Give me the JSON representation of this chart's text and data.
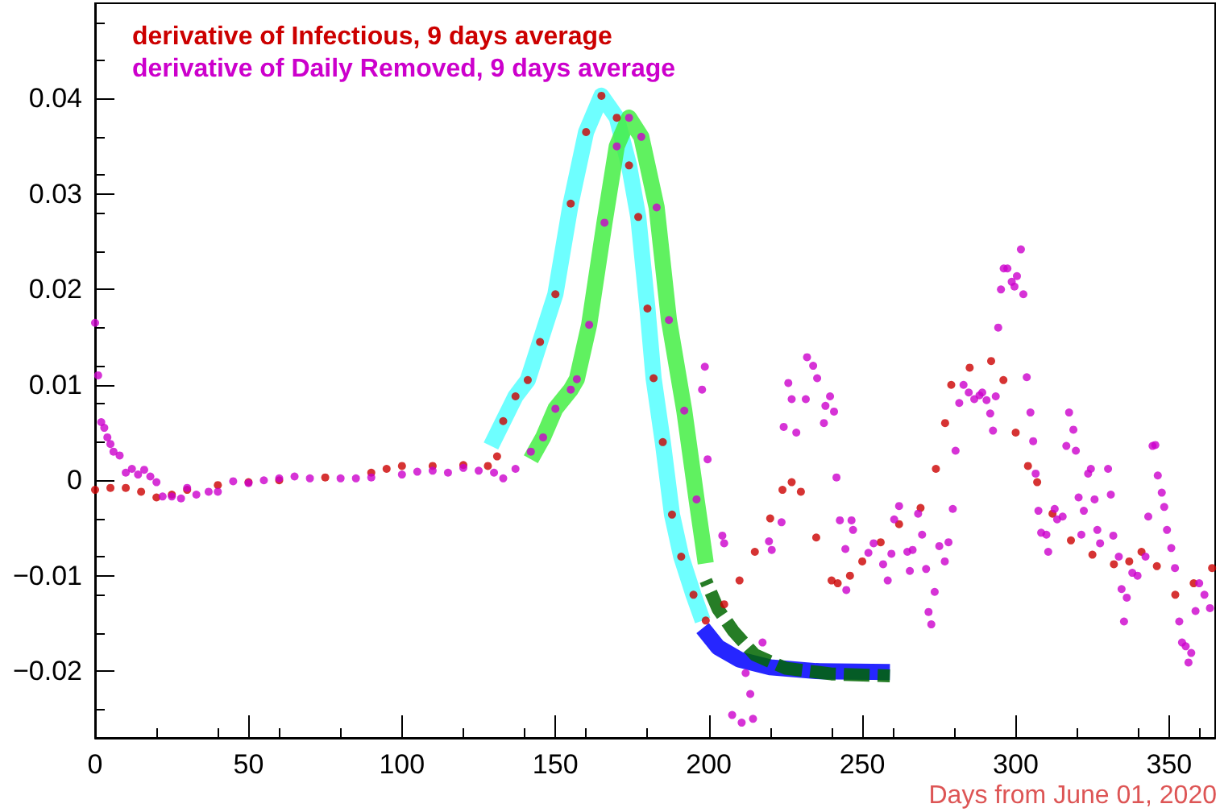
{
  "chart_data": {
    "type": "scatter",
    "xlabel": "Days from June 01, 2020",
    "xlim": [
      0,
      365
    ],
    "xticks": [
      0,
      50,
      100,
      150,
      200,
      250,
      300,
      350
    ],
    "ylim": [
      -0.027,
      0.05
    ],
    "yticks": [
      -0.02,
      -0.01,
      0,
      0.01,
      0.02,
      0.03,
      0.04
    ],
    "grid": false,
    "legend": "top left",
    "series": [
      {
        "type": "line",
        "marker": "none",
        "color": "#55ffff",
        "x": [
          129,
          133,
          137,
          141,
          145,
          150,
          155,
          160,
          165,
          170,
          174,
          177,
          180,
          182,
          185,
          188,
          191,
          195,
          198
        ],
        "values": [
          0.0036,
          0.0062,
          0.0088,
          0.0105,
          0.0145,
          0.0195,
          0.029,
          0.0365,
          0.0403,
          0.038,
          0.033,
          0.0276,
          0.018,
          0.0107,
          0.004,
          -0.0036,
          -0.008,
          -0.012,
          -0.0147
        ]
      },
      {
        "type": "line",
        "marker": "none",
        "color": "#44ee44",
        "x": [
          142,
          146,
          150,
          155,
          157,
          161,
          166,
          170,
          174,
          178,
          183,
          187,
          192,
          196,
          199
        ],
        "values": [
          0.0022,
          0.0045,
          0.0075,
          0.0095,
          0.0106,
          0.0163,
          0.027,
          0.035,
          0.038,
          0.036,
          0.0286,
          0.0168,
          0.0073,
          -0.002,
          -0.0087
        ]
      },
      {
        "type": "line",
        "marker": "none",
        "color": "#0000ff",
        "x": [
          198,
          203,
          210,
          220,
          235,
          259
        ],
        "values": [
          -0.0155,
          -0.0175,
          -0.0188,
          -0.0196,
          -0.02,
          -0.0201
        ]
      },
      {
        "type": "line",
        "marker": "none",
        "color": "#006600",
        "line_style": "dashed",
        "x": [
          199,
          203,
          208,
          215,
          225,
          240,
          259
        ],
        "values": [
          -0.0105,
          -0.0135,
          -0.0158,
          -0.0183,
          -0.0197,
          -0.0203,
          -0.0205
        ]
      },
      {
        "name": "derivative of Infectious, 9 days average",
        "marker": "circle",
        "color": "#cc0000",
        "x": [
          0,
          5,
          10,
          15,
          20,
          25,
          30,
          40,
          50,
          60,
          75,
          90,
          95,
          100,
          110,
          120,
          128,
          131,
          133,
          137,
          141,
          145,
          150,
          155,
          160,
          165,
          170,
          174,
          177,
          180,
          182,
          185,
          188,
          191,
          195,
          199,
          205,
          210,
          215,
          220,
          224,
          227,
          230,
          235,
          240,
          242,
          246,
          250,
          256,
          262,
          269,
          274,
          277,
          279,
          285,
          292,
          296,
          300,
          304,
          307,
          312,
          318,
          325,
          332,
          337,
          341,
          346,
          352,
          358,
          364
        ],
        "values": [
          -0.001,
          -0.0008,
          -0.0008,
          -0.0012,
          -0.0018,
          -0.0015,
          -0.001,
          -0.0005,
          -0.0002,
          0.0,
          0.0003,
          0.0008,
          0.0012,
          0.0015,
          0.0015,
          0.0016,
          0.0015,
          0.0025,
          0.0062,
          0.0088,
          0.0105,
          0.0145,
          0.0195,
          0.029,
          0.0365,
          0.0403,
          0.038,
          0.033,
          0.0276,
          0.018,
          0.0107,
          0.004,
          -0.0036,
          -0.008,
          -0.012,
          -0.0147,
          -0.013,
          -0.0105,
          -0.0075,
          -0.004,
          -0.001,
          -0.0002,
          -0.0012,
          -0.006,
          -0.0105,
          -0.0108,
          -0.01,
          -0.0085,
          -0.0065,
          -0.0046,
          -0.0029,
          0.0012,
          0.006,
          0.01,
          0.0118,
          0.0125,
          0.0105,
          0.005,
          0.0015,
          -0.0002,
          -0.0035,
          -0.0063,
          -0.0078,
          -0.0088,
          -0.0085,
          -0.0075,
          -0.009,
          -0.012,
          -0.0108,
          -0.0092
        ]
      },
      {
        "name": "derivative of Daily Removed, 9 days average",
        "marker": "circle",
        "color": "#cc00cc",
        "x": [
          0,
          1,
          2,
          3,
          4,
          5,
          6,
          8,
          10,
          12,
          14,
          16,
          18,
          20,
          22,
          25,
          28,
          30,
          33,
          37,
          40,
          45,
          50,
          55,
          60,
          65,
          70,
          80,
          85,
          90,
          100,
          105,
          110,
          115,
          120,
          125,
          130,
          133,
          137,
          142,
          146,
          150,
          155,
          157,
          161,
          166,
          170,
          174,
          178,
          183,
          187,
          192,
          196,
          197.8,
          198.7,
          199.6,
          204.4,
          205,
          207.6,
          210.7,
          212,
          213.5,
          214.4,
          217.5,
          219.6,
          220.5,
          223.7,
          224.4,
          225.9,
          227,
          228.5,
          231.6,
          232,
          234,
          235.3,
          237.5,
          238,
          239.5,
          240.8,
          241.6,
          242.7,
          244.5,
          244.8,
          246.5,
          247,
          252,
          253.7,
          256.8,
          258.3,
          259.5,
          260.4,
          262,
          264.7,
          265.5,
          266.4,
          268.2,
          269.5,
          270.8,
          271.6,
          272.5,
          273.6,
          275.1,
          276.9,
          278.1,
          279.5,
          280.4,
          281.6,
          283,
          284.7,
          286.5,
          288.2,
          289.1,
          290.5,
          291.7,
          292.6,
          293.5,
          294.3,
          295.2,
          296.1,
          297.3,
          298.7,
          299.6,
          300.4,
          301.7,
          302.5,
          303.6,
          304.8,
          305.7,
          306.5,
          307.4,
          308.3,
          310,
          310.6,
          312.7,
          313.5,
          315.3,
          316.5,
          317.4,
          318.8,
          319.6,
          320.5,
          321.4,
          322.2,
          323.6,
          324.5,
          325.7,
          326.6,
          327.5,
          330.1,
          331,
          331.8,
          333.6,
          334.5,
          335.3,
          336.2,
          338,
          339.7,
          342.3,
          343.2,
          344.6,
          345.5,
          346.3,
          347.6,
          348.4,
          349.3,
          350.7,
          351.9,
          353.3,
          354.2,
          355.4,
          356.3,
          357.2,
          358.6,
          359.8,
          361.5,
          363.3
        ],
        "values": [
          0.0165,
          0.011,
          0.0061,
          0.0055,
          0.0045,
          0.0038,
          0.003,
          0.0026,
          0.0008,
          0.0012,
          0.0006,
          0.0011,
          0.0004,
          -0.0002,
          -0.0017,
          -0.0017,
          -0.0019,
          -0.0008,
          -0.0015,
          -0.0012,
          -0.0012,
          -0.0001,
          -0.0003,
          0.0,
          0.0002,
          0.0004,
          0.0002,
          0.0002,
          0.0002,
          0.0003,
          0.0006,
          0.0009,
          0.001,
          0.0008,
          0.0013,
          0.001,
          0.0008,
          0.0002,
          0.0012,
          0.003,
          0.0045,
          0.0075,
          0.0095,
          0.0106,
          0.0163,
          0.027,
          0.035,
          0.038,
          0.036,
          0.0286,
          0.0168,
          0.0073,
          -0.002,
          0.0095,
          0.0119,
          0.0022,
          -0.0058,
          -0.0066,
          -0.0246,
          -0.0254,
          -0.0202,
          -0.0224,
          -0.025,
          -0.017,
          -0.0064,
          -0.0073,
          -0.0044,
          0.0056,
          0.0102,
          0.0085,
          0.005,
          0.0085,
          0.0129,
          0.012,
          0.0107,
          0.006,
          0.0078,
          0.0088,
          0.0072,
          0.0003,
          -0.0042,
          -0.0072,
          -0.0115,
          -0.0042,
          -0.0052,
          -0.0076,
          -0.0066,
          -0.0088,
          -0.0105,
          -0.0077,
          -0.0041,
          -0.0027,
          -0.0075,
          -0.0095,
          -0.0073,
          -0.0035,
          -0.0057,
          -0.0093,
          -0.0138,
          -0.0151,
          -0.0117,
          -0.0069,
          -0.0085,
          -0.0065,
          -0.003,
          0.0031,
          0.0081,
          0.01,
          0.0092,
          0.0085,
          0.0089,
          0.0092,
          0.0084,
          0.007,
          0.0052,
          0.0088,
          0.016,
          0.02,
          0.0222,
          0.0222,
          0.0208,
          0.0203,
          0.0214,
          0.0242,
          0.0195,
          0.0108,
          0.0071,
          0.0041,
          0.0007,
          -0.0032,
          -0.0055,
          -0.0057,
          -0.0075,
          -0.003,
          -0.0041,
          -0.0038,
          0.0036,
          0.0071,
          0.0053,
          0.0031,
          -0.0018,
          -0.0057,
          -0.0032,
          0.0007,
          0.0012,
          -0.002,
          -0.0052,
          -0.0066,
          0.0012,
          -0.0015,
          -0.0058,
          -0.008,
          -0.0114,
          -0.0148,
          -0.0123,
          -0.0097,
          -0.01,
          -0.008,
          -0.0038,
          0.0036,
          0.0037,
          0.0005,
          -0.0013,
          -0.0028,
          -0.0052,
          -0.0071,
          -0.0092,
          -0.0148,
          -0.017,
          -0.0174,
          -0.0191,
          -0.0181,
          -0.0137,
          -0.0108,
          -0.012,
          -0.0134
        ]
      }
    ]
  }
}
